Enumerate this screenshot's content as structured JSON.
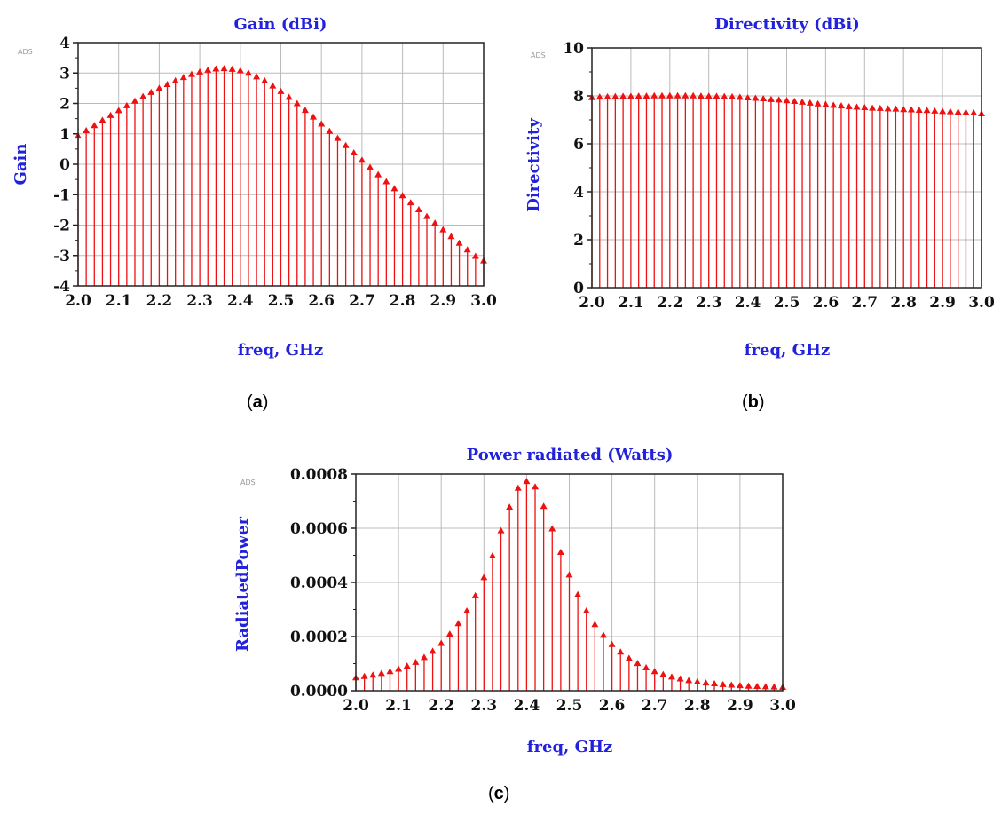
{
  "colors": {
    "series": "#ee1111",
    "label": "#2222dd",
    "grid": "#bbbbbb",
    "frame": "#222222"
  },
  "chart_data": [
    {
      "id": "a",
      "type": "stem",
      "title": "Gain (dBi)",
      "xlabel": "freq, GHz",
      "ylabel": "Gain",
      "tag": "ADS",
      "caption_letter": "a",
      "xlim": [
        2.0,
        3.0
      ],
      "ylim": [
        -4,
        4
      ],
      "xticks": [
        "2.0",
        "2.1",
        "2.2",
        "2.3",
        "2.4",
        "2.5",
        "2.6",
        "2.7",
        "2.8",
        "2.9",
        "3.0"
      ],
      "yticks": [
        "4",
        "3",
        "2",
        "1",
        "0",
        "-1",
        "-2",
        "-3",
        "-4"
      ],
      "x_start": 2.0,
      "x_step": 0.02,
      "values": [
        0.9,
        1.08,
        1.25,
        1.42,
        1.58,
        1.74,
        1.9,
        2.05,
        2.2,
        2.34,
        2.47,
        2.6,
        2.72,
        2.83,
        2.93,
        3.01,
        3.07,
        3.11,
        3.12,
        3.1,
        3.05,
        2.97,
        2.85,
        2.72,
        2.55,
        2.37,
        2.18,
        1.97,
        1.75,
        1.53,
        1.3,
        1.06,
        0.83,
        0.59,
        0.35,
        0.11,
        -0.13,
        -0.37,
        -0.6,
        -0.83,
        -1.06,
        -1.29,
        -1.52,
        -1.74,
        -1.96,
        -2.18,
        -2.4,
        -2.62,
        -2.84,
        -3.05,
        -3.2
      ]
    },
    {
      "id": "b",
      "type": "stem",
      "title": "Directivity (dBi)",
      "xlabel": "freq, GHz",
      "ylabel": "Directivity",
      "tag": "ADS",
      "caption_letter": "b",
      "xlim": [
        2.0,
        3.0
      ],
      "ylim": [
        0,
        10
      ],
      "xticks": [
        "2.0",
        "2.1",
        "2.2",
        "2.3",
        "2.4",
        "2.5",
        "2.6",
        "2.7",
        "2.8",
        "2.9",
        "3.0"
      ],
      "yticks": [
        "10",
        "8",
        "6",
        "4",
        "2",
        "0"
      ],
      "x_start": 2.0,
      "x_step": 0.02,
      "values": [
        7.9,
        7.92,
        7.93,
        7.94,
        7.95,
        7.95,
        7.96,
        7.96,
        7.97,
        7.97,
        7.97,
        7.97,
        7.97,
        7.97,
        7.96,
        7.96,
        7.95,
        7.94,
        7.93,
        7.91,
        7.89,
        7.87,
        7.85,
        7.82,
        7.8,
        7.77,
        7.74,
        7.71,
        7.67,
        7.64,
        7.61,
        7.58,
        7.55,
        7.52,
        7.5,
        7.48,
        7.46,
        7.45,
        7.43,
        7.42,
        7.4,
        7.39,
        7.37,
        7.36,
        7.34,
        7.32,
        7.31,
        7.29,
        7.28,
        7.26,
        7.22
      ]
    },
    {
      "id": "c",
      "type": "stem",
      "title": "Power radiated (Watts)",
      "xlabel": "freq, GHz",
      "ylabel": "RadiatedPower",
      "tag": "ADS",
      "caption_letter": "c",
      "xlim": [
        2.0,
        3.0
      ],
      "ylim": [
        0,
        0.0008
      ],
      "xticks": [
        "2.0",
        "2.1",
        "2.2",
        "2.3",
        "2.4",
        "2.5",
        "2.6",
        "2.7",
        "2.8",
        "2.9",
        "3.0"
      ],
      "yticks": [
        "0.0008",
        "0.0006",
        "0.0004",
        "0.0002",
        "0.0000"
      ],
      "x_start": 2.0,
      "x_step": 0.02,
      "values": [
        4.5e-05,
        5e-05,
        5.5e-05,
        6.1e-05,
        6.8e-05,
        7.7e-05,
        8.8e-05,
        0.000102,
        0.00012,
        0.000143,
        0.000172,
        0.000206,
        0.000245,
        0.000292,
        0.000348,
        0.000415,
        0.000495,
        0.000588,
        0.000675,
        0.000745,
        0.00077,
        0.00075,
        0.000678,
        0.000595,
        0.000508,
        0.000425,
        0.000352,
        0.000292,
        0.000242,
        0.000202,
        0.000168,
        0.00014,
        0.000117,
        9.8e-05,
        8.2e-05,
        6.8e-05,
        5.7e-05,
        4.8e-05,
        4.1e-05,
        3.5e-05,
        3e-05,
        2.6e-05,
        2.3e-05,
        2e-05,
        1.8e-05,
        1.6e-05,
        1.4e-05,
        1.3e-05,
        1.2e-05,
        1.1e-05,
        1e-05
      ]
    }
  ]
}
